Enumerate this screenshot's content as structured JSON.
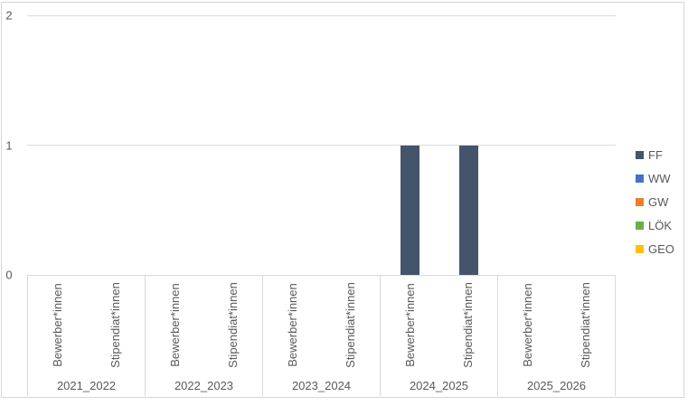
{
  "chart_data": {
    "type": "bar",
    "stacked": true,
    "title": "",
    "group_categories": [
      "2021_2022",
      "2022_2023",
      "2023_2024",
      "2024_2025",
      "2025_2026"
    ],
    "sub_categories": [
      "Bewerber*innen",
      "Stipendiat*innen"
    ],
    "series": [
      {
        "name": "FF",
        "color": "#44546A",
        "values": [
          [
            0,
            0
          ],
          [
            0,
            0
          ],
          [
            0,
            0
          ],
          [
            1,
            1
          ],
          [
            0,
            0
          ]
        ]
      },
      {
        "name": "WW",
        "color": "#4472C4",
        "values": [
          [
            0,
            0
          ],
          [
            0,
            0
          ],
          [
            0,
            0
          ],
          [
            0,
            0
          ],
          [
            0,
            0
          ]
        ]
      },
      {
        "name": "GW",
        "color": "#ED7D31",
        "values": [
          [
            0,
            0
          ],
          [
            0,
            0
          ],
          [
            0,
            0
          ],
          [
            0,
            0
          ],
          [
            0,
            0
          ]
        ]
      },
      {
        "name": "LÖK",
        "color": "#70AD47",
        "values": [
          [
            0,
            0
          ],
          [
            0,
            0
          ],
          [
            0,
            0
          ],
          [
            0,
            0
          ],
          [
            0,
            0
          ]
        ]
      },
      {
        "name": "GEO",
        "color": "#FFC000",
        "values": [
          [
            0,
            0
          ],
          [
            0,
            0
          ],
          [
            0,
            0
          ],
          [
            0,
            0
          ],
          [
            0,
            0
          ]
        ]
      }
    ],
    "y_axis": {
      "min": 0,
      "max": 2,
      "ticks": [
        0,
        1,
        2
      ]
    },
    "legend_position": "right",
    "gridlines": true,
    "colors": {
      "text": "#595959",
      "gridline": "#D9D9D9",
      "frame_border": "#D6D6D6",
      "background": "#FFFFFF"
    }
  }
}
